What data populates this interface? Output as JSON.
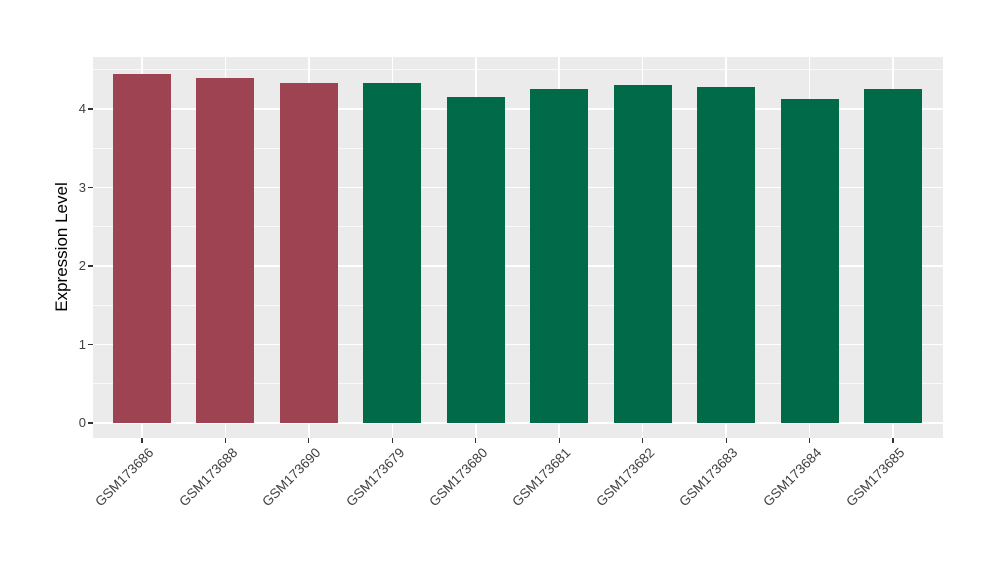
{
  "chart_data": {
    "type": "bar",
    "title": "",
    "xlabel": "",
    "ylabel": "Expression Level",
    "categories": [
      "GSM173686",
      "GSM173688",
      "GSM173690",
      "GSM173679",
      "GSM173680",
      "GSM173681",
      "GSM173682",
      "GSM173683",
      "GSM173684",
      "GSM173685"
    ],
    "values": [
      4.45,
      4.4,
      4.33,
      4.33,
      4.15,
      4.26,
      4.31,
      4.28,
      4.13,
      4.25
    ],
    "bar_colors": [
      "#9E4352",
      "#9E4352",
      "#9E4352",
      "#016A49",
      "#016A49",
      "#016A49",
      "#016A49",
      "#016A49",
      "#016A49",
      "#016A49"
    ],
    "y_ticks": [
      0,
      1,
      2,
      3,
      4
    ],
    "y_minor_ticks": [
      0.5,
      1.5,
      2.5,
      3.5,
      4.5
    ],
    "ylim": [
      -0.18,
      4.66
    ],
    "grid": "on",
    "legend": "none",
    "colors": {
      "group_a_bar": "#9E4352",
      "group_b_bar": "#016A49",
      "panel_background": "#EBEBEB",
      "gridline": "#FFFFFF",
      "tick_text": "#404040",
      "axis_title_text": "#000000"
    }
  }
}
